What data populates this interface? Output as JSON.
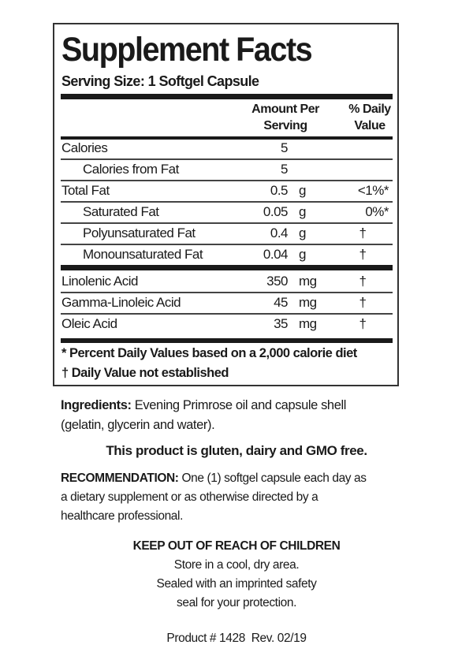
{
  "title": "Supplement Facts",
  "serving_size": "Serving Size: 1 Softgel Capsule",
  "headers": {
    "amount_line1": "Amount Per",
    "amount_line2": "Serving",
    "dv_line1": "% Daily",
    "dv_line2": "Value"
  },
  "rows": [
    {
      "name": "Calories",
      "amount": "5",
      "unit": "",
      "dv": ""
    },
    {
      "name": "Calories from Fat",
      "amount": "5",
      "unit": "",
      "dv": ""
    },
    {
      "name": "Total Fat",
      "amount": "0.5",
      "unit": "g",
      "dv": "<1%*"
    },
    {
      "name": "Saturated Fat",
      "amount": "0.05",
      "unit": "g",
      "dv": "0%*"
    },
    {
      "name": "Polyunsaturated Fat",
      "amount": "0.4",
      "unit": "g",
      "dv": "†"
    },
    {
      "name": "Monounsaturated Fat",
      "amount": "0.04",
      "unit": "g",
      "dv": "†"
    },
    {
      "name": "Linolenic Acid",
      "amount": "350",
      "unit": "mg",
      "dv": "†"
    },
    {
      "name": "Gamma-Linoleic Acid",
      "amount": "45",
      "unit": "mg",
      "dv": "†"
    },
    {
      "name": "Oleic Acid",
      "amount": "35",
      "unit": "mg",
      "dv": "†"
    }
  ],
  "footnotes": [
    "* Percent Daily Values based on a 2,000 calorie diet",
    "† Daily Value not established"
  ],
  "ingredients": {
    "label": "Ingredients:",
    "text1": " Evening Primrose oil and capsule shell",
    "text2": "(gelatin, glycerin and water)."
  },
  "free_statement": "This product is gluten, dairy and GMO free.",
  "recommendation": {
    "label": "RECOMMENDATION:",
    "text1": " One (1) softgel capsule each day as",
    "text2": "a dietary supplement or as otherwise directed by a",
    "text3": "healthcare professional."
  },
  "warning": {
    "title": "KEEP OUT OF REACH OF CHILDREN",
    "line1": "Store in a cool, dry area.",
    "line2": "Sealed with an imprinted safety",
    "line3": "seal for your protection."
  },
  "product": "Product # 1428  Rev. 02/19"
}
